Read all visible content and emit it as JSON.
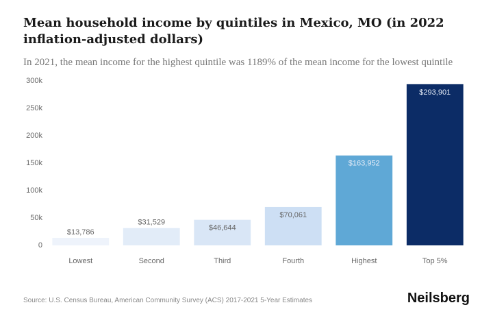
{
  "chart_data": {
    "type": "bar",
    "title": "Mean household income by quintiles in Mexico, MO (in 2022 inflation-adjusted dollars)",
    "subtitle": "In 2021, the mean income for the highest quintile was 1189% of the mean income for the lowest quintile",
    "categories": [
      "Lowest",
      "Second",
      "Third",
      "Fourth",
      "Highest",
      "Top 5%"
    ],
    "values": [
      13786,
      31529,
      46644,
      70061,
      163952,
      293901
    ],
    "value_labels": [
      "$13,786",
      "$31,529",
      "$46,644",
      "$70,061",
      "$163,952",
      "$293,901"
    ],
    "colors": [
      "#eef3fb",
      "#e2ecf8",
      "#d9e6f6",
      "#cddff4",
      "#5fa8d6",
      "#0c2c66"
    ],
    "ylim": [
      0,
      300000
    ],
    "yticks": [
      0,
      {
        "value": 50000,
        "label": "50k"
      },
      {
        "value": 100000,
        "label": "100k"
      },
      {
        "value": 150000,
        "label": "150k"
      },
      {
        "value": 200000,
        "label": "200k"
      },
      {
        "value": 250000,
        "label": "250k"
      },
      {
        "value": 300000,
        "label": "300k"
      }
    ],
    "grid": false,
    "source": "Source: U.S. Census Bureau, American Community Survey (ACS) 2017-2021 5-Year Estimates",
    "brand": "Neilsberg"
  }
}
